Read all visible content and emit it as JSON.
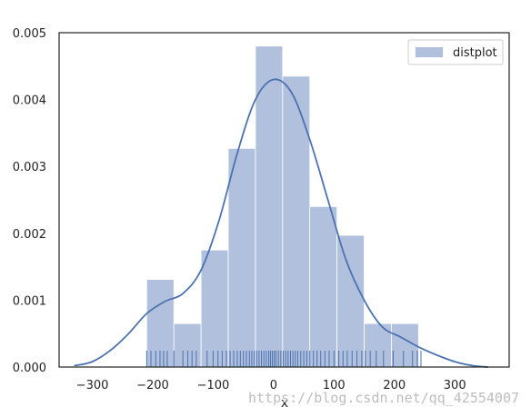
{
  "chart_data": {
    "type": "bar",
    "title": "",
    "xlabel": "x",
    "ylabel": "",
    "xlim": [
      -355,
      390
    ],
    "ylim": [
      0,
      0.005
    ],
    "xticks": [
      -300,
      -200,
      -100,
      0,
      100,
      200,
      300
    ],
    "yticks": [
      0.0,
      0.001,
      0.002,
      0.003,
      0.004,
      0.005
    ],
    "ytick_labels": [
      "0.000",
      "0.001",
      "0.002",
      "0.003",
      "0.004",
      "0.005"
    ],
    "grid": false,
    "legend": {
      "position": "top-right",
      "entries": [
        "distplot"
      ]
    },
    "colors": {
      "bar": "#b0c0dd",
      "line": "#4c72b0",
      "rug": "#4c72b0"
    },
    "histogram": {
      "bin_edges": [
        -210,
        -165,
        -120,
        -75,
        -30,
        15,
        60,
        105,
        150,
        195,
        240
      ],
      "density": [
        0.00131,
        0.00065,
        0.00175,
        0.00327,
        0.0048,
        0.00435,
        0.0024,
        0.00197,
        0.00065,
        0.00065
      ]
    },
    "kde": {
      "x": [
        -330,
        -300,
        -270,
        -240,
        -210,
        -180,
        -150,
        -120,
        -90,
        -60,
        -30,
        0,
        30,
        60,
        90,
        120,
        150,
        180,
        210,
        240,
        270,
        300,
        330,
        355
      ],
      "y": [
        2e-05,
        8e-05,
        0.00025,
        0.0005,
        0.0008,
        0.00098,
        0.0011,
        0.00145,
        0.0022,
        0.0032,
        0.004,
        0.0043,
        0.0041,
        0.0034,
        0.0025,
        0.0016,
        0.001,
        0.0006,
        0.00045,
        0.0003,
        0.00018,
        8e-05,
        2e-05,
        0.0
      ]
    },
    "rug": [
      -210,
      -203,
      -195,
      -188,
      -182,
      -176,
      -165,
      -150,
      -142,
      -135,
      -128,
      -110,
      -100,
      -92,
      -85,
      -78,
      -72,
      -66,
      -60,
      -55,
      -50,
      -45,
      -40,
      -36,
      -32,
      -28,
      -24,
      -20,
      -16,
      -12,
      -8,
      -5,
      -2,
      1,
      4,
      8,
      12,
      16,
      20,
      24,
      28,
      32,
      36,
      40,
      45,
      50,
      55,
      60,
      66,
      72,
      78,
      85,
      92,
      100,
      108,
      115,
      122,
      130,
      138,
      146,
      152,
      160,
      170,
      182,
      198,
      215,
      230,
      238,
      244
    ]
  },
  "watermark": "https://blog.csdn.net/qq_42554007"
}
